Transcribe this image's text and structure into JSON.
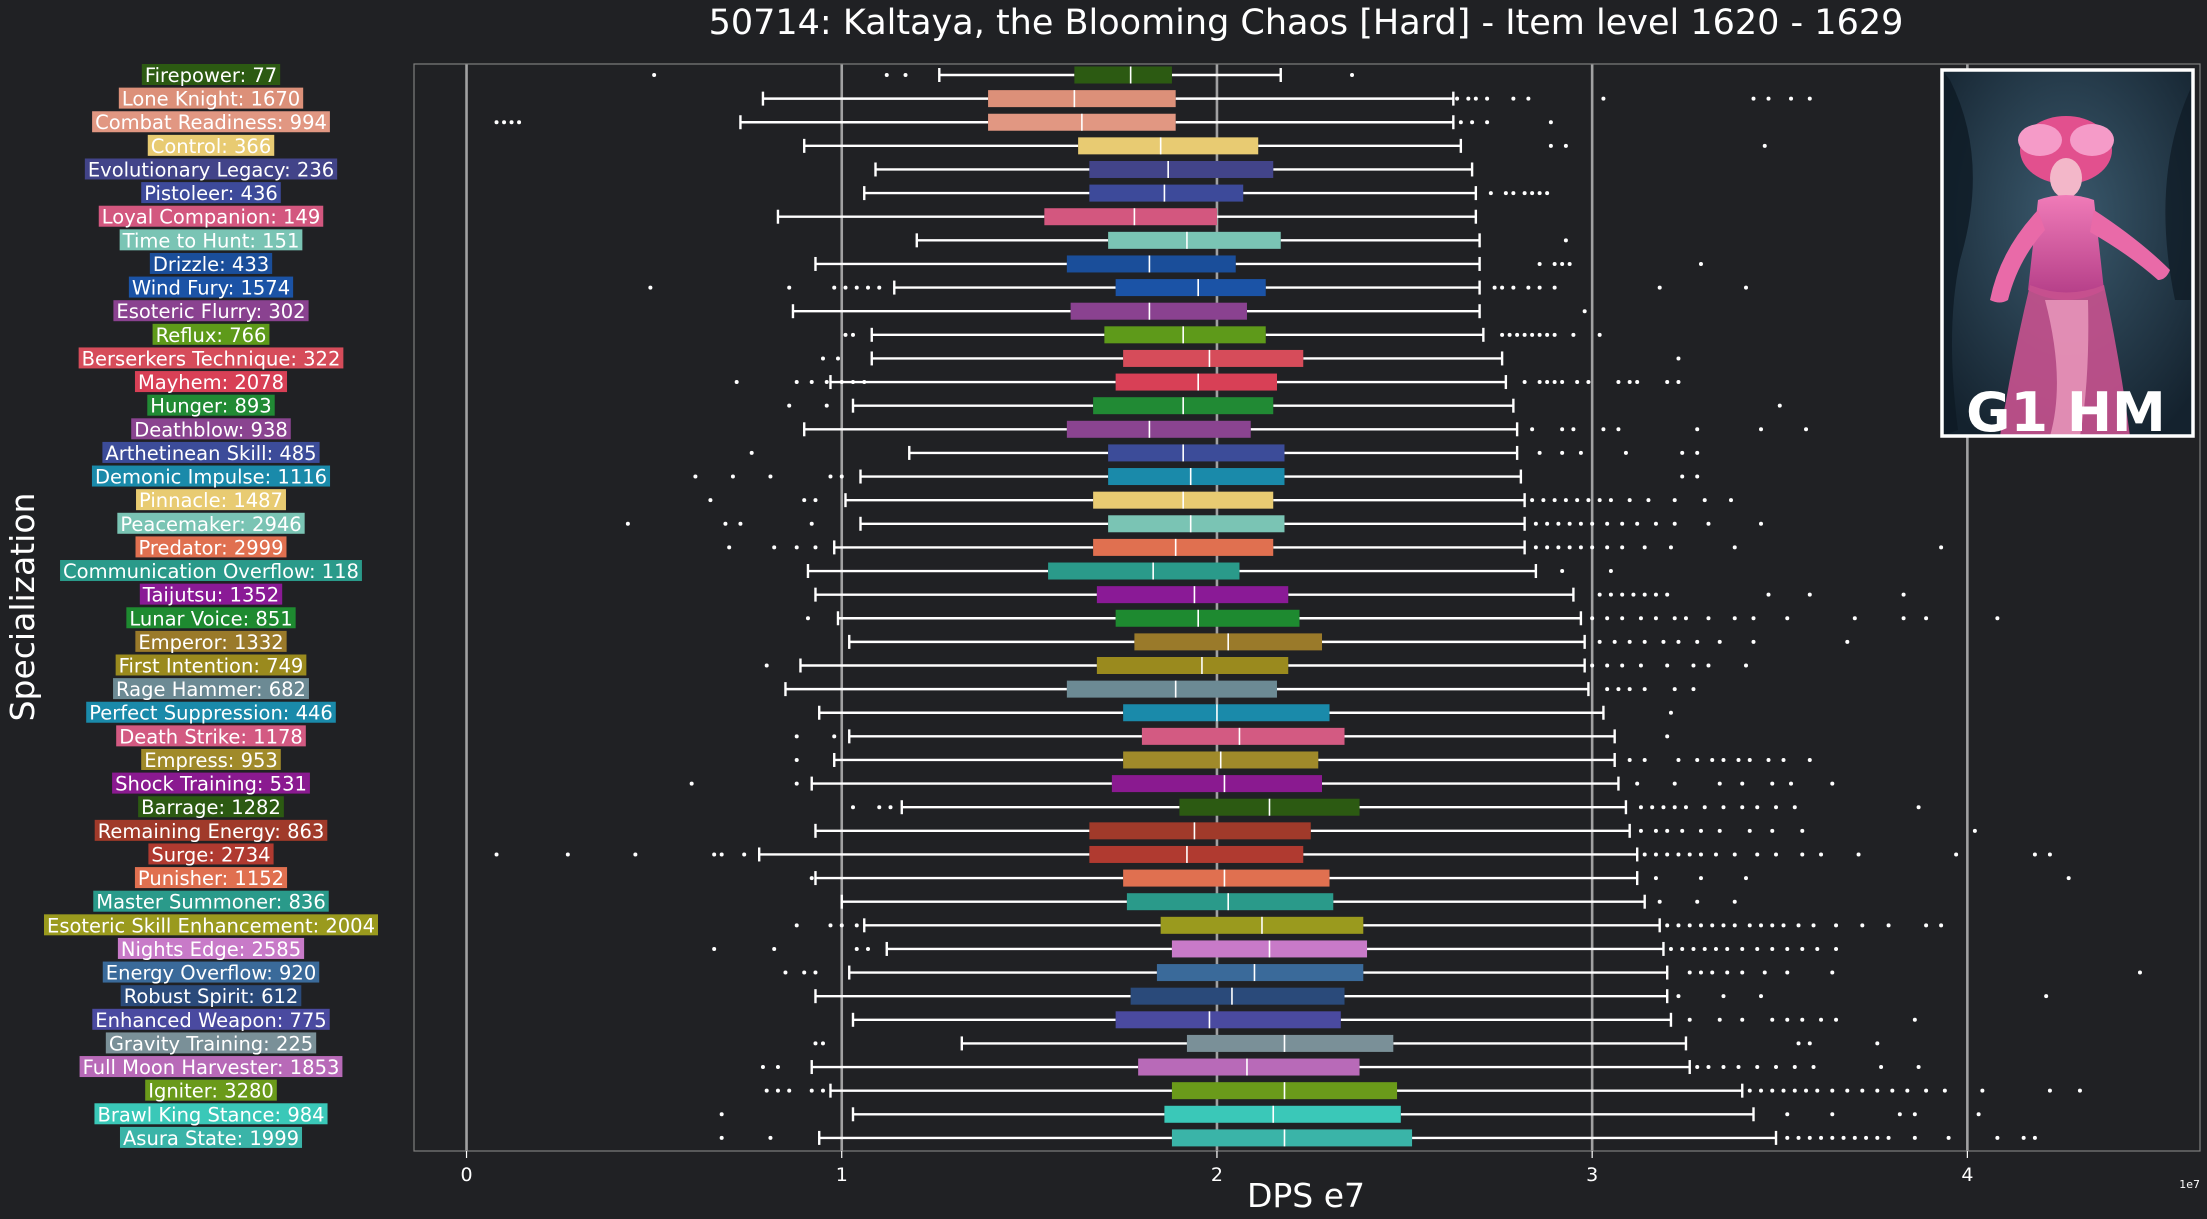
{
  "chart_data": {
    "type": "box",
    "title": "50714: Kaltaya, the Blooming Chaos [Hard] - Item level 1620 - 1629",
    "xlabel": "DPS e7",
    "ylabel": "Specialization",
    "x_exponent_label": "1e7",
    "xlim": [
      -0.14,
      4.62
    ],
    "xticks": [
      0,
      1,
      2,
      3,
      4
    ],
    "grid": "vertical",
    "badge_text": "G1 HM",
    "series": [
      {
        "label": "Firepower: 77",
        "color": "#2c5a12",
        "whisker_low": 1.26,
        "q1": 1.62,
        "median": 1.77,
        "q3": 1.88,
        "whisker_high": 2.17,
        "outliers": [
          0.5,
          1.12,
          1.17,
          2.36
        ]
      },
      {
        "label": "Lone Knight: 1670",
        "color": "#dc9079",
        "whisker_low": 0.79,
        "q1": 1.39,
        "median": 1.62,
        "q3": 1.89,
        "whisker_high": 2.63,
        "outliers": [
          2.64,
          2.67,
          2.69,
          2.72,
          2.79,
          2.83,
          3.03,
          3.43,
          3.47,
          3.53,
          3.58
        ]
      },
      {
        "label": "Combat Readiness: 994",
        "color": "#e19782",
        "whisker_low": 0.73,
        "q1": 1.39,
        "median": 1.64,
        "q3": 1.89,
        "whisker_high": 2.63,
        "outliers": [
          0.08,
          0.1,
          0.12,
          0.14,
          2.65,
          2.68,
          2.72,
          2.89
        ]
      },
      {
        "label": "Control: 366",
        "color": "#e8cb72",
        "whisker_low": 0.9,
        "q1": 1.63,
        "median": 1.85,
        "q3": 2.11,
        "whisker_high": 2.65,
        "outliers": [
          2.89,
          2.93,
          3.46
        ]
      },
      {
        "label": "Evolutionary Legacy: 236",
        "color": "#424489",
        "whisker_low": 1.09,
        "q1": 1.66,
        "median": 1.87,
        "q3": 2.15,
        "whisker_high": 2.68,
        "outliers": []
      },
      {
        "label": "Pistoleer: 436",
        "color": "#3d4a9a",
        "whisker_low": 1.06,
        "q1": 1.66,
        "median": 1.86,
        "q3": 2.07,
        "whisker_high": 2.69,
        "outliers": [
          2.73,
          2.77,
          2.79,
          2.82,
          2.84,
          2.86,
          2.88
        ]
      },
      {
        "label": "Loyal Companion: 149",
        "color": "#d3577f",
        "whisker_low": 0.83,
        "q1": 1.54,
        "median": 1.78,
        "q3": 2.0,
        "whisker_high": 2.69,
        "outliers": []
      },
      {
        "label": "Time to Hunt: 151",
        "color": "#7ac4b4",
        "whisker_low": 1.2,
        "q1": 1.71,
        "median": 1.92,
        "q3": 2.17,
        "whisker_high": 2.7,
        "outliers": [
          2.93
        ]
      },
      {
        "label": "Drizzle: 433",
        "color": "#1a4e9a",
        "whisker_low": 0.93,
        "q1": 1.6,
        "median": 1.82,
        "q3": 2.05,
        "whisker_high": 2.7,
        "outliers": [
          2.86,
          2.9,
          2.92,
          2.94,
          3.29
        ]
      },
      {
        "label": "Wind Fury: 1574",
        "color": "#1b53a6",
        "whisker_low": 1.14,
        "q1": 1.73,
        "median": 1.95,
        "q3": 2.13,
        "whisker_high": 2.7,
        "outliers": [
          0.49,
          0.86,
          0.98,
          1.01,
          1.04,
          1.07,
          1.1,
          2.74,
          2.76,
          2.79,
          2.83,
          2.86,
          2.9,
          3.18,
          3.41
        ]
      },
      {
        "label": "Esoteric Flurry: 302",
        "color": "#8a4290",
        "whisker_low": 0.87,
        "q1": 1.61,
        "median": 1.82,
        "q3": 2.08,
        "whisker_high": 2.7,
        "outliers": [
          2.98
        ]
      },
      {
        "label": "Reflux: 766",
        "color": "#5e9a1a",
        "whisker_low": 1.08,
        "q1": 1.7,
        "median": 1.91,
        "q3": 2.13,
        "whisker_high": 2.71,
        "outliers": [
          1.01,
          1.03,
          2.76,
          2.78,
          2.8,
          2.82,
          2.84,
          2.86,
          2.88,
          2.9,
          2.95,
          3.02
        ]
      },
      {
        "label": "Berserkers Technique: 322",
        "color": "#d64c5a",
        "whisker_low": 1.08,
        "q1": 1.75,
        "median": 1.98,
        "q3": 2.23,
        "whisker_high": 2.76,
        "outliers": [
          0.95,
          0.99,
          3.23
        ]
      },
      {
        "label": "Mayhem: 2078",
        "color": "#d84056",
        "whisker_low": 0.97,
        "q1": 1.73,
        "median": 1.95,
        "q3": 2.16,
        "whisker_high": 2.77,
        "outliers": [
          0.72,
          0.88,
          0.92,
          0.96,
          1.0,
          1.03,
          1.06,
          2.82,
          2.86,
          2.88,
          2.9,
          2.92,
          2.96,
          2.99,
          3.07,
          3.1,
          3.12,
          3.2,
          3.23
        ]
      },
      {
        "label": "Hunger: 893",
        "color": "#218a34",
        "whisker_low": 1.03,
        "q1": 1.67,
        "median": 1.91,
        "q3": 2.15,
        "whisker_high": 2.79,
        "outliers": [
          0.86,
          0.96,
          3.5
        ]
      },
      {
        "label": "Deathblow: 938",
        "color": "#8a4490",
        "whisker_low": 0.9,
        "q1": 1.6,
        "median": 1.82,
        "q3": 2.09,
        "whisker_high": 2.8,
        "outliers": [
          2.84,
          2.92,
          2.95,
          3.03,
          3.07,
          3.28,
          3.45,
          3.57
        ]
      },
      {
        "label": "Arthetinean Skill: 485",
        "color": "#3c4c99",
        "whisker_low": 1.18,
        "q1": 1.71,
        "median": 1.91,
        "q3": 2.18,
        "whisker_high": 2.8,
        "outliers": [
          0.76,
          2.86,
          2.92,
          2.97,
          3.09,
          3.24,
          3.28
        ]
      },
      {
        "label": "Demonic Impulse: 1116",
        "color": "#1a8aaa",
        "whisker_low": 1.05,
        "q1": 1.71,
        "median": 1.93,
        "q3": 2.18,
        "whisker_high": 2.81,
        "outliers": [
          0.61,
          0.71,
          0.81,
          0.97,
          1.0,
          3.24,
          3.28
        ]
      },
      {
        "label": "Pinnacle: 1487",
        "color": "#e8cb72",
        "whisker_low": 1.01,
        "q1": 1.67,
        "median": 1.91,
        "q3": 2.15,
        "whisker_high": 2.82,
        "outliers": [
          0.65,
          0.9,
          0.93,
          2.84,
          2.87,
          2.9,
          2.93,
          2.96,
          2.99,
          3.02,
          3.05,
          3.1,
          3.15,
          3.22,
          3.3,
          3.37
        ]
      },
      {
        "label": "Peacemaker: 2946",
        "color": "#7ac4b4",
        "whisker_low": 1.05,
        "q1": 1.71,
        "median": 1.93,
        "q3": 2.18,
        "whisker_high": 2.82,
        "outliers": [
          0.43,
          0.69,
          0.73,
          0.92,
          2.85,
          2.88,
          2.91,
          2.94,
          2.97,
          3.0,
          3.04,
          3.08,
          3.12,
          3.17,
          3.22,
          3.31,
          3.45
        ]
      },
      {
        "label": "Predator: 2999",
        "color": "#e07050",
        "whisker_low": 0.98,
        "q1": 1.67,
        "median": 1.89,
        "q3": 2.15,
        "whisker_high": 2.82,
        "outliers": [
          0.7,
          0.82,
          0.88,
          0.93,
          2.85,
          2.88,
          2.91,
          2.94,
          2.97,
          3.0,
          3.04,
          3.08,
          3.14,
          3.21,
          3.38,
          3.93
        ]
      },
      {
        "label": "Communication Overflow: 118",
        "color": "#2a9a8a",
        "whisker_low": 0.91,
        "q1": 1.55,
        "median": 1.83,
        "q3": 2.06,
        "whisker_high": 2.85,
        "outliers": [
          2.92,
          3.05
        ]
      },
      {
        "label": "Taijutsu: 1352",
        "color": "#8a1a96",
        "whisker_low": 0.93,
        "q1": 1.68,
        "median": 1.94,
        "q3": 2.19,
        "whisker_high": 2.95,
        "outliers": [
          3.02,
          3.05,
          3.08,
          3.11,
          3.14,
          3.17,
          3.2,
          3.47,
          3.58,
          3.83
        ]
      },
      {
        "label": "Lunar Voice: 851",
        "color": "#1e8a30",
        "whisker_low": 0.99,
        "q1": 1.73,
        "median": 1.95,
        "q3": 2.22,
        "whisker_high": 2.97,
        "outliers": [
          0.91,
          3.0,
          3.04,
          3.08,
          3.13,
          3.17,
          3.22,
          3.25,
          3.31,
          3.38,
          3.43,
          3.52,
          3.7,
          3.83,
          3.89,
          4.08
        ]
      },
      {
        "label": "Emperor: 1332",
        "color": "#9a7a2a",
        "whisker_low": 1.02,
        "q1": 1.78,
        "median": 2.03,
        "q3": 2.28,
        "whisker_high": 2.98,
        "outliers": [
          3.02,
          3.06,
          3.1,
          3.14,
          3.19,
          3.23,
          3.28,
          3.34,
          3.43,
          3.68
        ]
      },
      {
        "label": "First Intention: 749",
        "color": "#9a8a1e",
        "whisker_low": 0.89,
        "q1": 1.68,
        "median": 1.96,
        "q3": 2.19,
        "whisker_high": 2.98,
        "outliers": [
          0.8,
          3.0,
          3.04,
          3.08,
          3.13,
          3.2,
          3.27,
          3.31,
          3.41
        ]
      },
      {
        "label": "Rage Hammer: 682",
        "color": "#6c8a94",
        "whisker_low": 0.85,
        "q1": 1.6,
        "median": 1.89,
        "q3": 2.16,
        "whisker_high": 2.99,
        "outliers": [
          3.04,
          3.07,
          3.1,
          3.14,
          3.22,
          3.27
        ]
      },
      {
        "label": "Perfect Suppression: 446",
        "color": "#1a8aaa",
        "whisker_low": 0.94,
        "q1": 1.75,
        "median": 2.0,
        "q3": 2.3,
        "whisker_high": 3.03,
        "outliers": [
          3.21
        ]
      },
      {
        "label": "Death Strike: 1178",
        "color": "#d35a82",
        "whisker_low": 1.02,
        "q1": 1.8,
        "median": 2.06,
        "q3": 2.34,
        "whisker_high": 3.06,
        "outliers": [
          0.88,
          0.98,
          3.2
        ]
      },
      {
        "label": "Empress: 953",
        "color": "#a08a2a",
        "whisker_low": 0.98,
        "q1": 1.75,
        "median": 2.01,
        "q3": 2.27,
        "whisker_high": 3.06,
        "outliers": [
          0.88,
          3.1,
          3.14,
          3.23,
          3.28,
          3.32,
          3.35,
          3.39,
          3.42,
          3.47,
          3.51,
          3.58
        ]
      },
      {
        "label": "Shock Training: 531",
        "color": "#8a1a90",
        "whisker_low": 0.92,
        "q1": 1.72,
        "median": 2.02,
        "q3": 2.28,
        "whisker_high": 3.07,
        "outliers": [
          0.6,
          0.88,
          3.12,
          3.22,
          3.34,
          3.4,
          3.48,
          3.53,
          3.64
        ]
      },
      {
        "label": "Barrage: 1282",
        "color": "#2c5a12",
        "whisker_low": 1.16,
        "q1": 1.9,
        "median": 2.14,
        "q3": 2.38,
        "whisker_high": 3.09,
        "outliers": [
          1.03,
          1.1,
          1.13,
          3.13,
          3.16,
          3.19,
          3.22,
          3.25,
          3.3,
          3.35,
          3.4,
          3.44,
          3.49,
          3.54,
          3.87
        ]
      },
      {
        "label": "Remaining Energy: 863",
        "color": "#a03a2a",
        "whisker_low": 0.93,
        "q1": 1.66,
        "median": 1.94,
        "q3": 2.25,
        "whisker_high": 3.1,
        "outliers": [
          3.13,
          3.17,
          3.2,
          3.24,
          3.29,
          3.34,
          3.42,
          3.48,
          3.56,
          4.02
        ]
      },
      {
        "label": "Surge: 2734",
        "color": "#b03a30",
        "whisker_low": 0.78,
        "q1": 1.66,
        "median": 1.92,
        "q3": 2.23,
        "whisker_high": 3.12,
        "outliers": [
          0.08,
          0.27,
          0.45,
          0.66,
          0.68,
          0.74,
          3.14,
          3.17,
          3.2,
          3.23,
          3.26,
          3.29,
          3.33,
          3.38,
          3.44,
          3.49,
          3.56,
          3.61,
          3.71,
          3.97,
          4.18,
          4.22
        ]
      },
      {
        "label": "Punisher: 1152",
        "color": "#e07050",
        "whisker_low": 0.93,
        "q1": 1.75,
        "median": 2.02,
        "q3": 2.3,
        "whisker_high": 3.12,
        "outliers": [
          0.92,
          3.17,
          3.29,
          3.41,
          4.27
        ]
      },
      {
        "label": "Master Summoner: 836",
        "color": "#2a9a8a",
        "whisker_low": 1.0,
        "q1": 1.76,
        "median": 2.03,
        "q3": 2.31,
        "whisker_high": 3.14,
        "outliers": [
          3.18,
          3.28,
          3.38
        ]
      },
      {
        "label": "Esoteric Skill Enhancement: 2004",
        "color": "#9a9a1e",
        "whisker_low": 1.06,
        "q1": 1.85,
        "median": 2.12,
        "q3": 2.39,
        "whisker_high": 3.18,
        "outliers": [
          0.88,
          0.97,
          1.0,
          1.04,
          3.2,
          3.23,
          3.26,
          3.29,
          3.32,
          3.35,
          3.38,
          3.42,
          3.45,
          3.48,
          3.51,
          3.55,
          3.59,
          3.65,
          3.72,
          3.79,
          3.89,
          3.93
        ]
      },
      {
        "label": "Nights Edge: 2585",
        "color": "#c87ac8",
        "whisker_low": 1.12,
        "q1": 1.88,
        "median": 2.14,
        "q3": 2.4,
        "whisker_high": 3.19,
        "outliers": [
          0.66,
          0.82,
          1.04,
          1.07,
          3.21,
          3.24,
          3.27,
          3.3,
          3.33,
          3.36,
          3.4,
          3.44,
          3.48,
          3.52,
          3.56,
          3.6,
          3.65
        ]
      },
      {
        "label": "Energy Overflow: 920",
        "color": "#3a6a9a",
        "whisker_low": 1.02,
        "q1": 1.84,
        "median": 2.1,
        "q3": 2.39,
        "whisker_high": 3.2,
        "outliers": [
          0.85,
          0.9,
          0.93,
          3.26,
          3.29,
          3.32,
          3.36,
          3.4,
          3.46,
          3.52,
          3.64,
          4.46
        ]
      },
      {
        "label": "Robust Spirit: 612",
        "color": "#2a4a7a",
        "whisker_low": 0.93,
        "q1": 1.77,
        "median": 2.04,
        "q3": 2.34,
        "whisker_high": 3.2,
        "outliers": [
          3.23,
          3.35,
          3.45,
          4.21
        ]
      },
      {
        "label": "Enhanced Weapon: 775",
        "color": "#4a4aa0",
        "whisker_low": 1.03,
        "q1": 1.73,
        "median": 1.98,
        "q3": 2.33,
        "whisker_high": 3.21,
        "outliers": [
          3.26,
          3.34,
          3.4,
          3.48,
          3.52,
          3.56,
          3.61,
          3.65,
          3.86
        ]
      },
      {
        "label": "Gravity Training: 225",
        "color": "#7a9098",
        "whisker_low": 1.32,
        "q1": 1.92,
        "median": 2.18,
        "q3": 2.47,
        "whisker_high": 3.25,
        "outliers": [
          0.93,
          0.95,
          3.55,
          3.58,
          3.76
        ]
      },
      {
        "label": "Full Moon Harvester: 1853",
        "color": "#b86ab8",
        "whisker_low": 0.92,
        "q1": 1.79,
        "median": 2.08,
        "q3": 2.38,
        "whisker_high": 3.26,
        "outliers": [
          0.79,
          0.83,
          3.28,
          3.31,
          3.35,
          3.39,
          3.44,
          3.49,
          3.54,
          3.59,
          3.77,
          3.87
        ]
      },
      {
        "label": "Igniter: 3280",
        "color": "#6a9a1a",
        "whisker_low": 0.97,
        "q1": 1.88,
        "median": 2.18,
        "q3": 2.48,
        "whisker_high": 3.4,
        "outliers": [
          0.8,
          0.83,
          0.86,
          0.92,
          0.95,
          3.42,
          3.45,
          3.48,
          3.51,
          3.54,
          3.57,
          3.6,
          3.64,
          3.68,
          3.72,
          3.76,
          3.8,
          3.84,
          3.89,
          3.94,
          4.04,
          4.22,
          4.3
        ]
      },
      {
        "label": "Brawl King Stance: 984",
        "color": "#3ac8b8",
        "whisker_low": 1.03,
        "q1": 1.86,
        "median": 2.15,
        "q3": 2.49,
        "whisker_high": 3.43,
        "outliers": [
          0.68,
          3.52,
          3.64,
          3.82,
          3.86,
          4.03
        ]
      },
      {
        "label": "Asura State: 1999",
        "color": "#3ab4a8",
        "whisker_low": 0.94,
        "q1": 1.88,
        "median": 2.18,
        "q3": 2.52,
        "whisker_high": 3.49,
        "outliers": [
          0.68,
          0.81,
          3.52,
          3.55,
          3.58,
          3.61,
          3.64,
          3.67,
          3.7,
          3.73,
          3.76,
          3.79,
          3.86,
          3.95,
          4.08,
          4.15,
          4.18
        ]
      }
    ]
  }
}
